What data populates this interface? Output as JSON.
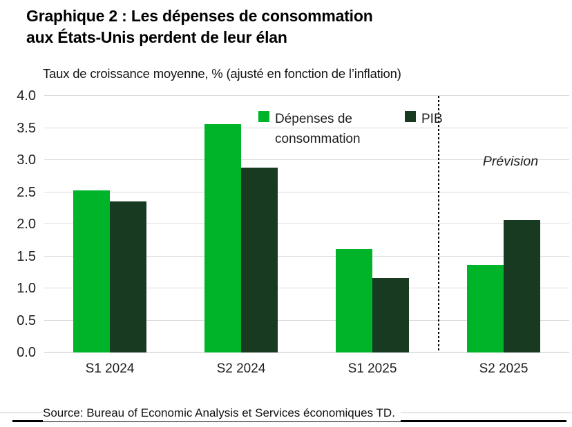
{
  "title": {
    "line1": "Graphique 2 : Les dépenses de consommation",
    "line2": "aux États-Unis perdent de leur élan"
  },
  "subtitle": "Taux de croissance moyenne, % (ajusté en fonction de l’inflation)",
  "source": "Source: Bureau of Economic Analysis et Services économiques TD.",
  "colors": {
    "consumption_green": "#00b42a",
    "pib_dark_green": "#173a21",
    "gridline": "#dadada",
    "baseline": "#c4c4c4",
    "separator": "#000000",
    "text": "#1f1f1f"
  },
  "chart_data": {
    "type": "bar",
    "title": "Graphique 2 : Les dépenses de consommation aux États-Unis perdent de leur élan",
    "ylabel": "Taux de croissance moyenne, % (ajusté en fonction de l’inflation)",
    "xlabel": "",
    "categories": [
      "S1 2024",
      "S2 2024",
      "S1 2025",
      "S2 2025"
    ],
    "series": [
      {
        "name": "Dépenses de consommation",
        "color": "#00b42a",
        "values": [
          2.53,
          3.56,
          1.61,
          1.37
        ]
      },
      {
        "name": "PIB",
        "color": "#173a21",
        "values": [
          2.35,
          2.88,
          1.16,
          2.07
        ]
      }
    ],
    "ylim": [
      0,
      4
    ],
    "ytick_step": 0.5,
    "ytick_format": "one-decimal",
    "grid": true,
    "legend_position": "top-center-inside",
    "forecast_separator_after_category": "S1 2025",
    "forecast_label": "Prévision"
  }
}
